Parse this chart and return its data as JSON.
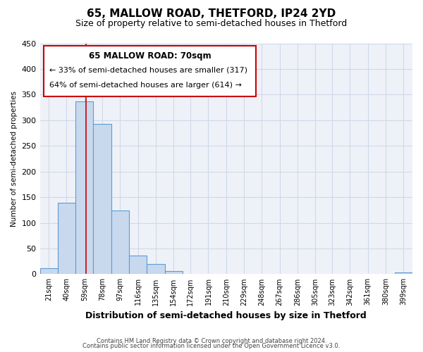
{
  "title": "65, MALLOW ROAD, THETFORD, IP24 2YD",
  "subtitle": "Size of property relative to semi-detached houses in Thetford",
  "xlabel": "Distribution of semi-detached houses by size in Thetford",
  "ylabel": "Number of semi-detached properties",
  "bin_labels": [
    "21sqm",
    "40sqm",
    "59sqm",
    "78sqm",
    "97sqm",
    "116sqm",
    "135sqm",
    "154sqm",
    "172sqm",
    "191sqm",
    "210sqm",
    "229sqm",
    "248sqm",
    "267sqm",
    "286sqm",
    "305sqm",
    "323sqm",
    "342sqm",
    "361sqm",
    "380sqm",
    "399sqm"
  ],
  "bin_edges": [
    21,
    40,
    59,
    78,
    97,
    116,
    135,
    154,
    172,
    191,
    210,
    229,
    248,
    267,
    286,
    305,
    323,
    342,
    361,
    380,
    399
  ],
  "bar_heights": [
    12,
    139,
    337,
    293,
    124,
    36,
    20,
    6,
    0,
    0,
    0,
    0,
    0,
    0,
    0,
    0,
    0,
    0,
    0,
    0,
    4
  ],
  "bar_color": "#c8d9ee",
  "bar_edge_color": "#5b9bd5",
  "property_line_x": 70,
  "property_line_color": "#cc0000",
  "annotation_title": "65 MALLOW ROAD: 70sqm",
  "annotation_line1": "← 33% of semi-detached houses are smaller (317)",
  "annotation_line2": "64% of semi-detached houses are larger (614) →",
  "annotation_box_color": "#cc0000",
  "ylim": [
    0,
    450
  ],
  "yticks": [
    0,
    50,
    100,
    150,
    200,
    250,
    300,
    350,
    400,
    450
  ],
  "footnote1": "Contains HM Land Registry data © Crown copyright and database right 2024.",
  "footnote2": "Contains public sector information licensed under the Open Government Licence v3.0.",
  "bg_color": "#eef2f8",
  "grid_color": "#d0d8e8",
  "title_fontsize": 11,
  "subtitle_fontsize": 9
}
